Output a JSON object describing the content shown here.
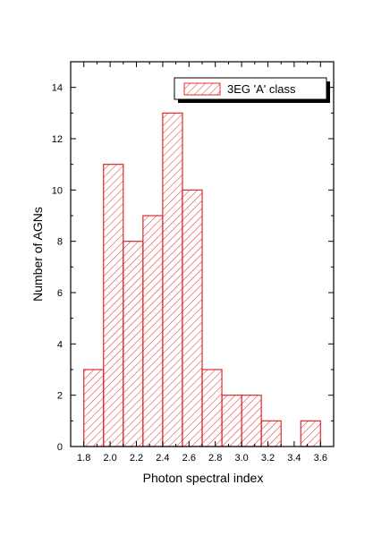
{
  "chart_data": {
    "type": "bar",
    "title": "",
    "xlabel": "Photon spectral index",
    "ylabel": "Number of AGNs",
    "xlim": [
      1.7,
      3.7
    ],
    "ylim": [
      0,
      15
    ],
    "x_ticks": [
      "1.8",
      "2.0",
      "2.2",
      "2.4",
      "2.6",
      "2.8",
      "3.0",
      "3.2",
      "3.4",
      "3.6"
    ],
    "y_ticks": [
      "0",
      "2",
      "4",
      "6",
      "8",
      "10",
      "12",
      "14"
    ],
    "bin_width": 0.15,
    "grid": false,
    "legend_position": "top-right",
    "series": [
      {
        "name": "3EG 'A' class",
        "color": "#e0282a",
        "fill": "diagonal-hatch",
        "bins": [
          {
            "x0": 1.8,
            "x1": 1.95,
            "value": 3
          },
          {
            "x0": 1.95,
            "x1": 2.1,
            "value": 11
          },
          {
            "x0": 2.1,
            "x1": 2.25,
            "value": 8
          },
          {
            "x0": 2.25,
            "x1": 2.4,
            "value": 9
          },
          {
            "x0": 2.4,
            "x1": 2.55,
            "value": 13
          },
          {
            "x0": 2.55,
            "x1": 2.7,
            "value": 10
          },
          {
            "x0": 2.7,
            "x1": 2.85,
            "value": 3
          },
          {
            "x0": 2.85,
            "x1": 3.0,
            "value": 2
          },
          {
            "x0": 3.0,
            "x1": 3.15,
            "value": 2
          },
          {
            "x0": 3.15,
            "x1": 3.3,
            "value": 1
          },
          {
            "x0": 3.45,
            "x1": 3.6,
            "value": 1
          }
        ]
      }
    ]
  }
}
